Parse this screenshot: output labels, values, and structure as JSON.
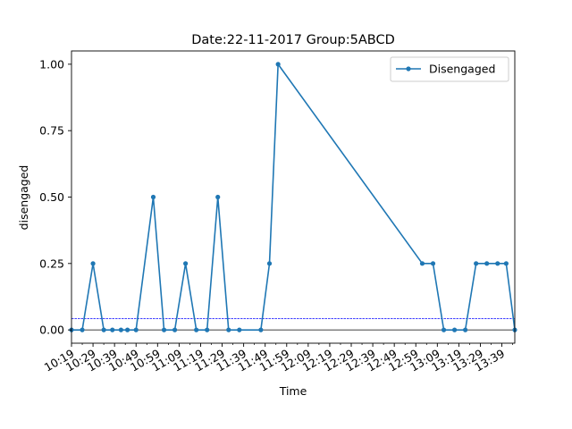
{
  "chart_data": {
    "type": "line",
    "title": "Date:22-11-2017  Group:5ABCD",
    "xlabel": "Time",
    "ylabel": "disengaged",
    "xlim": [
      "10:19",
      "13:45"
    ],
    "ylim": [
      -0.05,
      1.05
    ],
    "y_ticks": [
      0.0,
      0.25,
      0.5,
      0.75,
      1.0
    ],
    "y_tick_labels": [
      "0.00",
      "0.25",
      "0.50",
      "0.75",
      "1.00"
    ],
    "x_tick_labels": [
      "10:19",
      "10:29",
      "10:39",
      "10:49",
      "10:59",
      "11:09",
      "11:19",
      "11:29",
      "11:39",
      "11:49",
      "11:59",
      "12:09",
      "12:19",
      "12:29",
      "12:39",
      "12:49",
      "12:59",
      "13:09",
      "13:19",
      "13:29",
      "13:39"
    ],
    "grid": false,
    "legend_position": "top-right",
    "reference_lines": [
      {
        "y": 0.0,
        "style": "solid",
        "color": "#000000"
      },
      {
        "y": 0.042,
        "style": "dashed",
        "color": "#0000ff"
      }
    ],
    "series": [
      {
        "name": "Disengaged",
        "color": "#1f77b4",
        "x": [
          "10:19",
          "10:24",
          "10:29",
          "10:34",
          "10:38",
          "10:42",
          "10:45",
          "10:49",
          "10:57",
          "11:02",
          "11:07",
          "11:12",
          "11:17",
          "11:22",
          "11:27",
          "11:32",
          "11:37",
          "11:47",
          "11:51",
          "11:55",
          "13:02",
          "13:07",
          "13:12",
          "13:17",
          "13:22",
          "13:27",
          "13:32",
          "13:37",
          "13:41",
          "13:45"
        ],
        "y": [
          0,
          0,
          0.25,
          0,
          0,
          0,
          0,
          0,
          0.5,
          0,
          0,
          0.25,
          0,
          0,
          0.5,
          0,
          0,
          0,
          0.25,
          1.0,
          0.25,
          0.25,
          0,
          0,
          0,
          0.25,
          0.25,
          0.25,
          0.25,
          0
        ]
      }
    ]
  }
}
